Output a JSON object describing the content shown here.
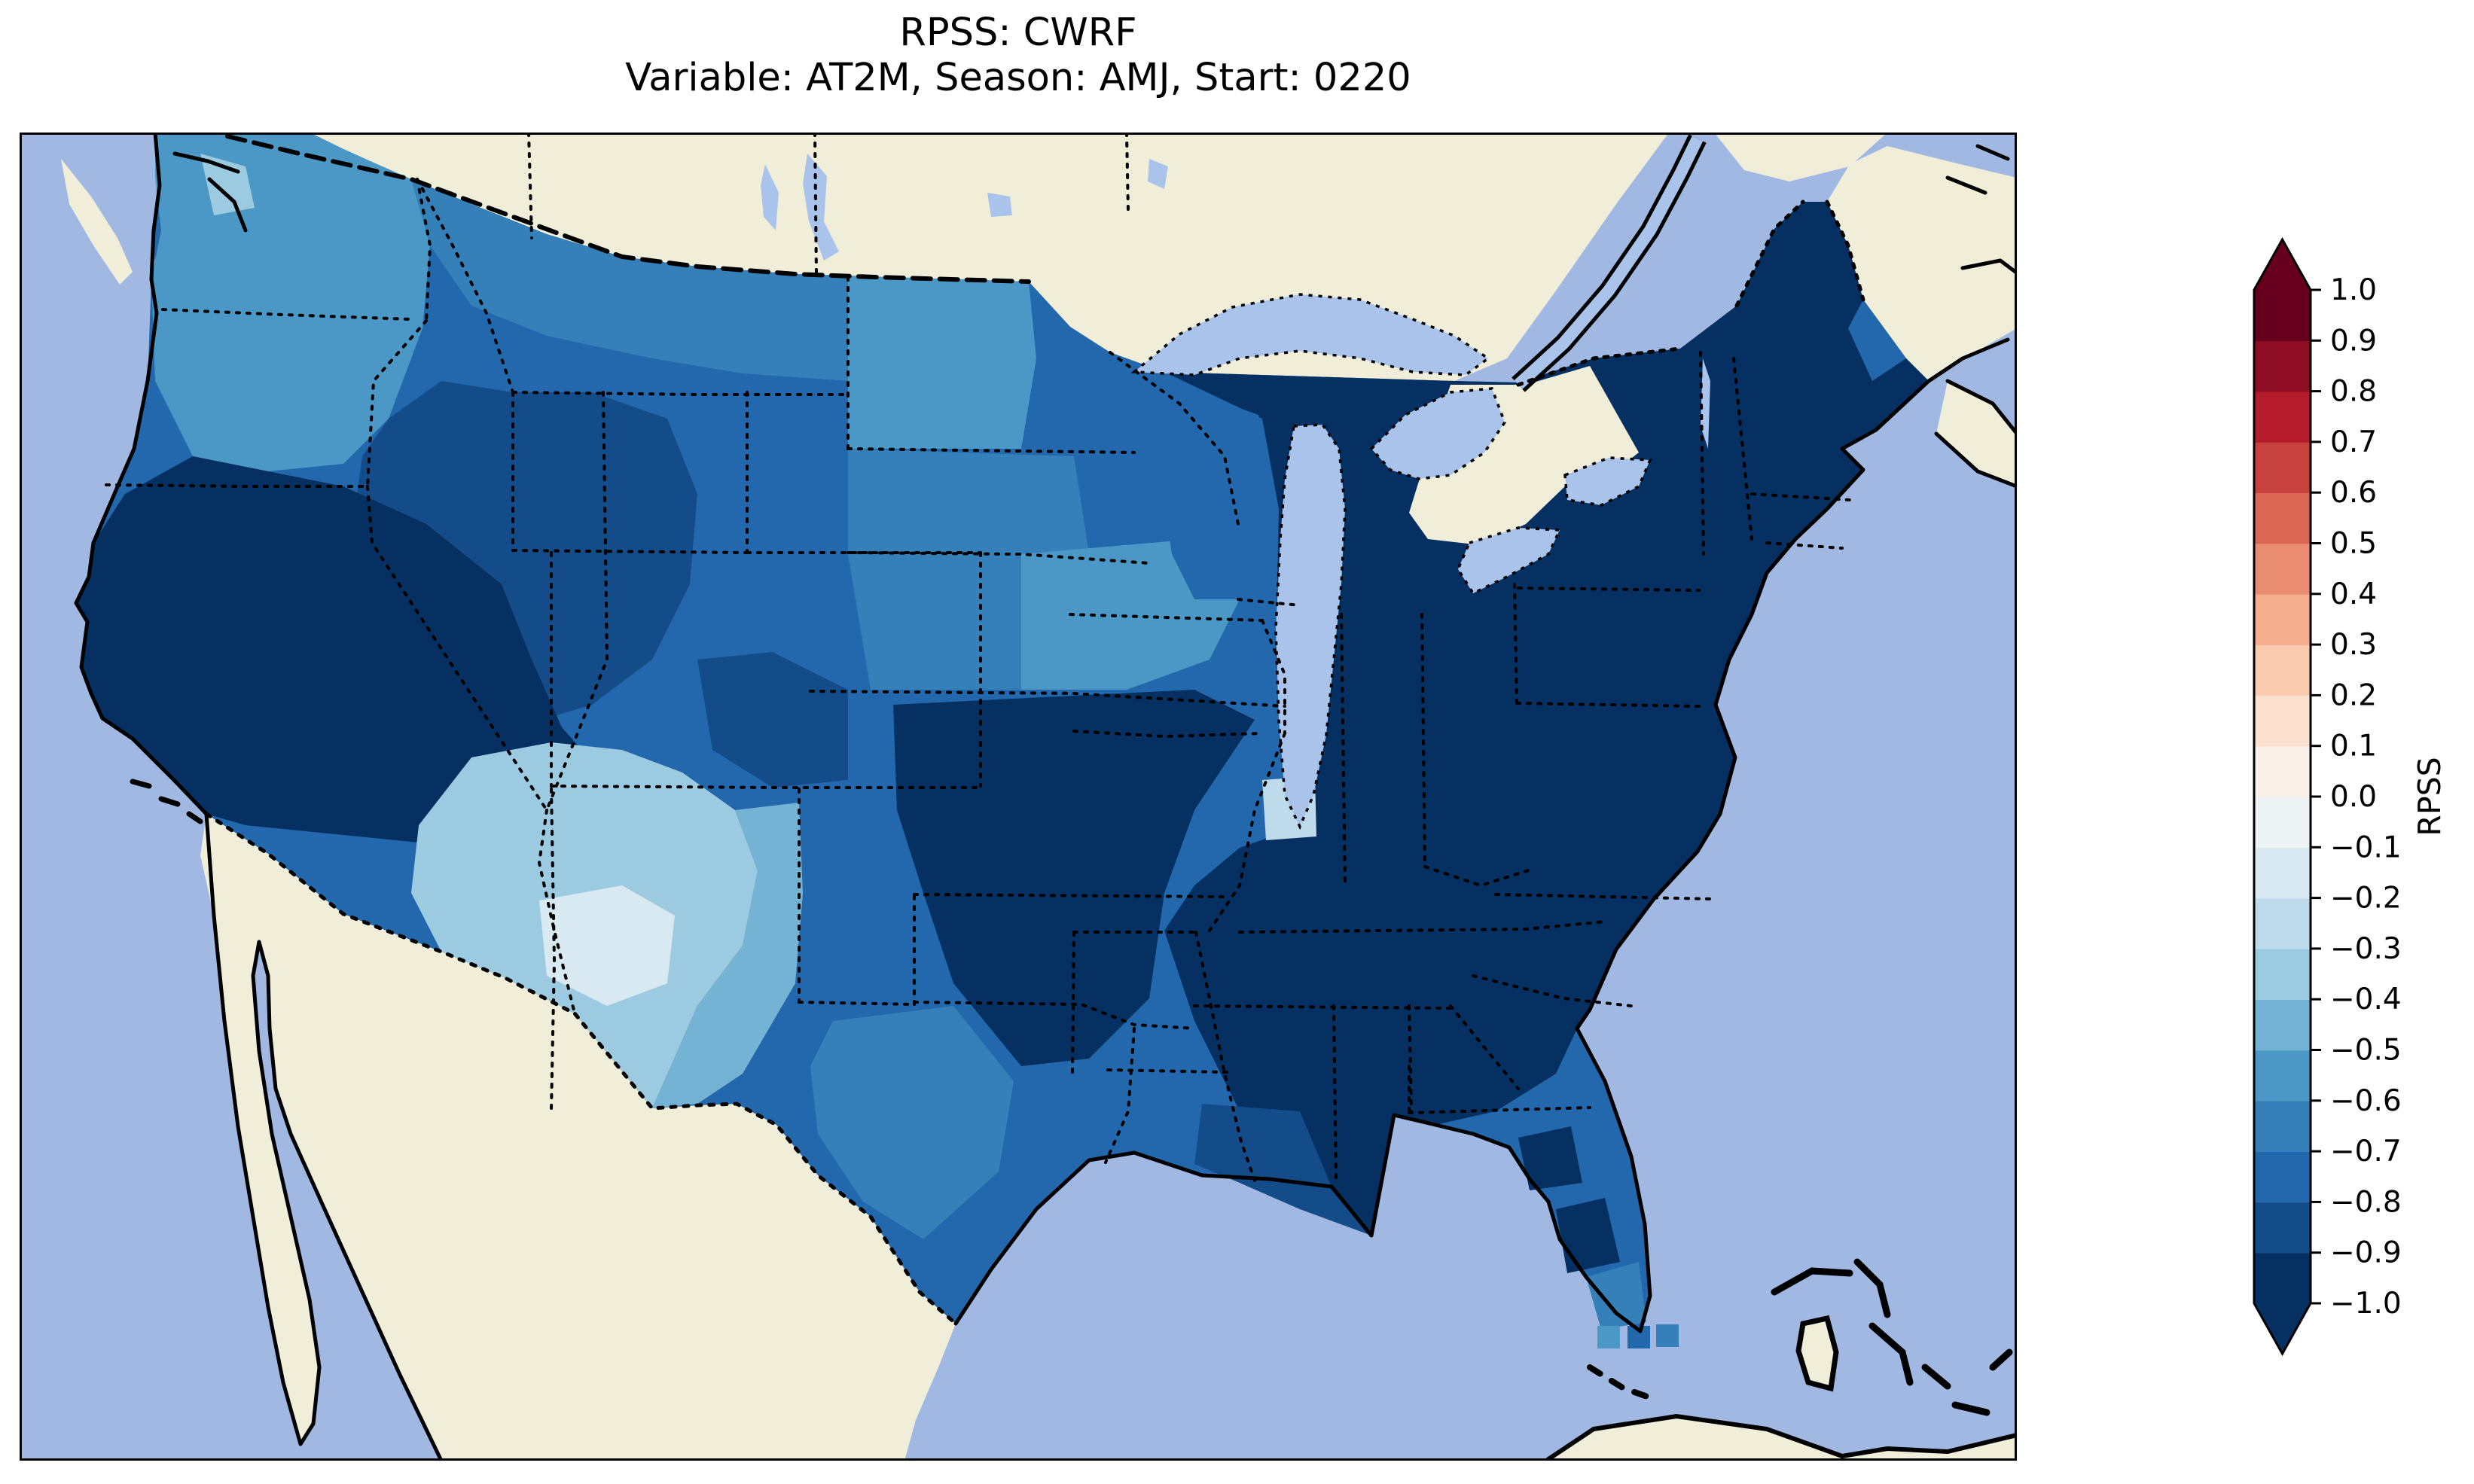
{
  "figure": {
    "title_line1": "RPSS: CWRF",
    "title_line2": "Variable: AT2M, Season: AMJ, Start: 0220"
  },
  "chart_data": {
    "type": "heatmap",
    "title": "RPSS: CWRF",
    "subtitle": "Variable: AT2M, Season: AMJ, Start: 0220",
    "metric": "RPSS",
    "model": "CWRF",
    "variable": "AT2M",
    "season": "AMJ",
    "start": "0220",
    "colorbar": {
      "label": "RPSS",
      "range": [
        -1.0,
        1.0
      ],
      "step": 0.1,
      "extend": "both",
      "tick_labels": [
        "1.0",
        "0.9",
        "0.8",
        "0.7",
        "0.6",
        "0.5",
        "0.4",
        "0.3",
        "0.2",
        "0.1",
        "0.0",
        "−0.1",
        "−0.2",
        "−0.3",
        "−0.4",
        "−0.5",
        "−0.6",
        "−0.7",
        "−0.8",
        "−0.9",
        "−1.0"
      ],
      "colors_bottom_to_top": [
        "#053061",
        "#144c89",
        "#2368ad",
        "#3580b9",
        "#4b98c6",
        "#75b3d4",
        "#9ccae1",
        "#bddbea",
        "#d9e9f1",
        "#edf2f5",
        "#f9f0ea",
        "#fce1d1",
        "#facab1",
        "#f5ae8d",
        "#e98c6f",
        "#d96753",
        "#c7423f",
        "#b41c2d",
        "#8e0d25",
        "#67001f"
      ],
      "under_color": "#053061",
      "over_color": "#67001f"
    },
    "map": {
      "ocean_color": "#a0b8e2",
      "land_color": "#f0eed9",
      "lake_color": "#a9c3ea",
      "coastline_color": "#000000",
      "frame_color": "#000000",
      "background": "#ffffff"
    },
    "regions": [
      {
        "name": "conus-base",
        "rpss": -0.75
      },
      {
        "name": "pacific-northwest",
        "rpss": -0.55
      },
      {
        "name": "puget-sound-lowland",
        "rpss": -0.35
      },
      {
        "name": "montana",
        "rpss": -0.65
      },
      {
        "name": "north-dakota",
        "rpss": -0.55
      },
      {
        "name": "south-dakota-nebraska",
        "rpss": -0.65
      },
      {
        "name": "iowa-east-nebraska",
        "rpss": -0.55
      },
      {
        "name": "great-basin",
        "rpss": -0.85
      },
      {
        "name": "california-nevada",
        "rpss": -0.95
      },
      {
        "name": "colorado-navy-patch",
        "rpss": -0.85
      },
      {
        "name": "central-plains",
        "rpss": -0.95
      },
      {
        "name": "wisconsin",
        "rpss": -0.75
      },
      {
        "name": "eastern-us",
        "rpss": -0.95
      },
      {
        "name": "chicago-area-light",
        "rpss": -0.25
      },
      {
        "name": "louisiana-coast",
        "rpss": -0.85
      },
      {
        "name": "southwest-arizona-new-mexico",
        "rpss": -0.35
      },
      {
        "name": "southern-new-mexico-core",
        "rpss": -0.15
      },
      {
        "name": "eastern-new-mexico",
        "rpss": -0.45
      },
      {
        "name": "central-texas",
        "rpss": -0.65
      },
      {
        "name": "florida-navy-patch-north",
        "rpss": -0.95
      },
      {
        "name": "florida-navy-patch-south",
        "rpss": -0.95
      },
      {
        "name": "florida-keys-area",
        "rpss": -0.65
      },
      {
        "name": "maine-coastal",
        "rpss": -0.75
      },
      {
        "name": "offshore-cell-west",
        "rpss": -0.55
      },
      {
        "name": "offshore-cell-middle",
        "rpss": -0.75
      },
      {
        "name": "offshore-cell-east",
        "rpss": -0.65
      }
    ]
  }
}
